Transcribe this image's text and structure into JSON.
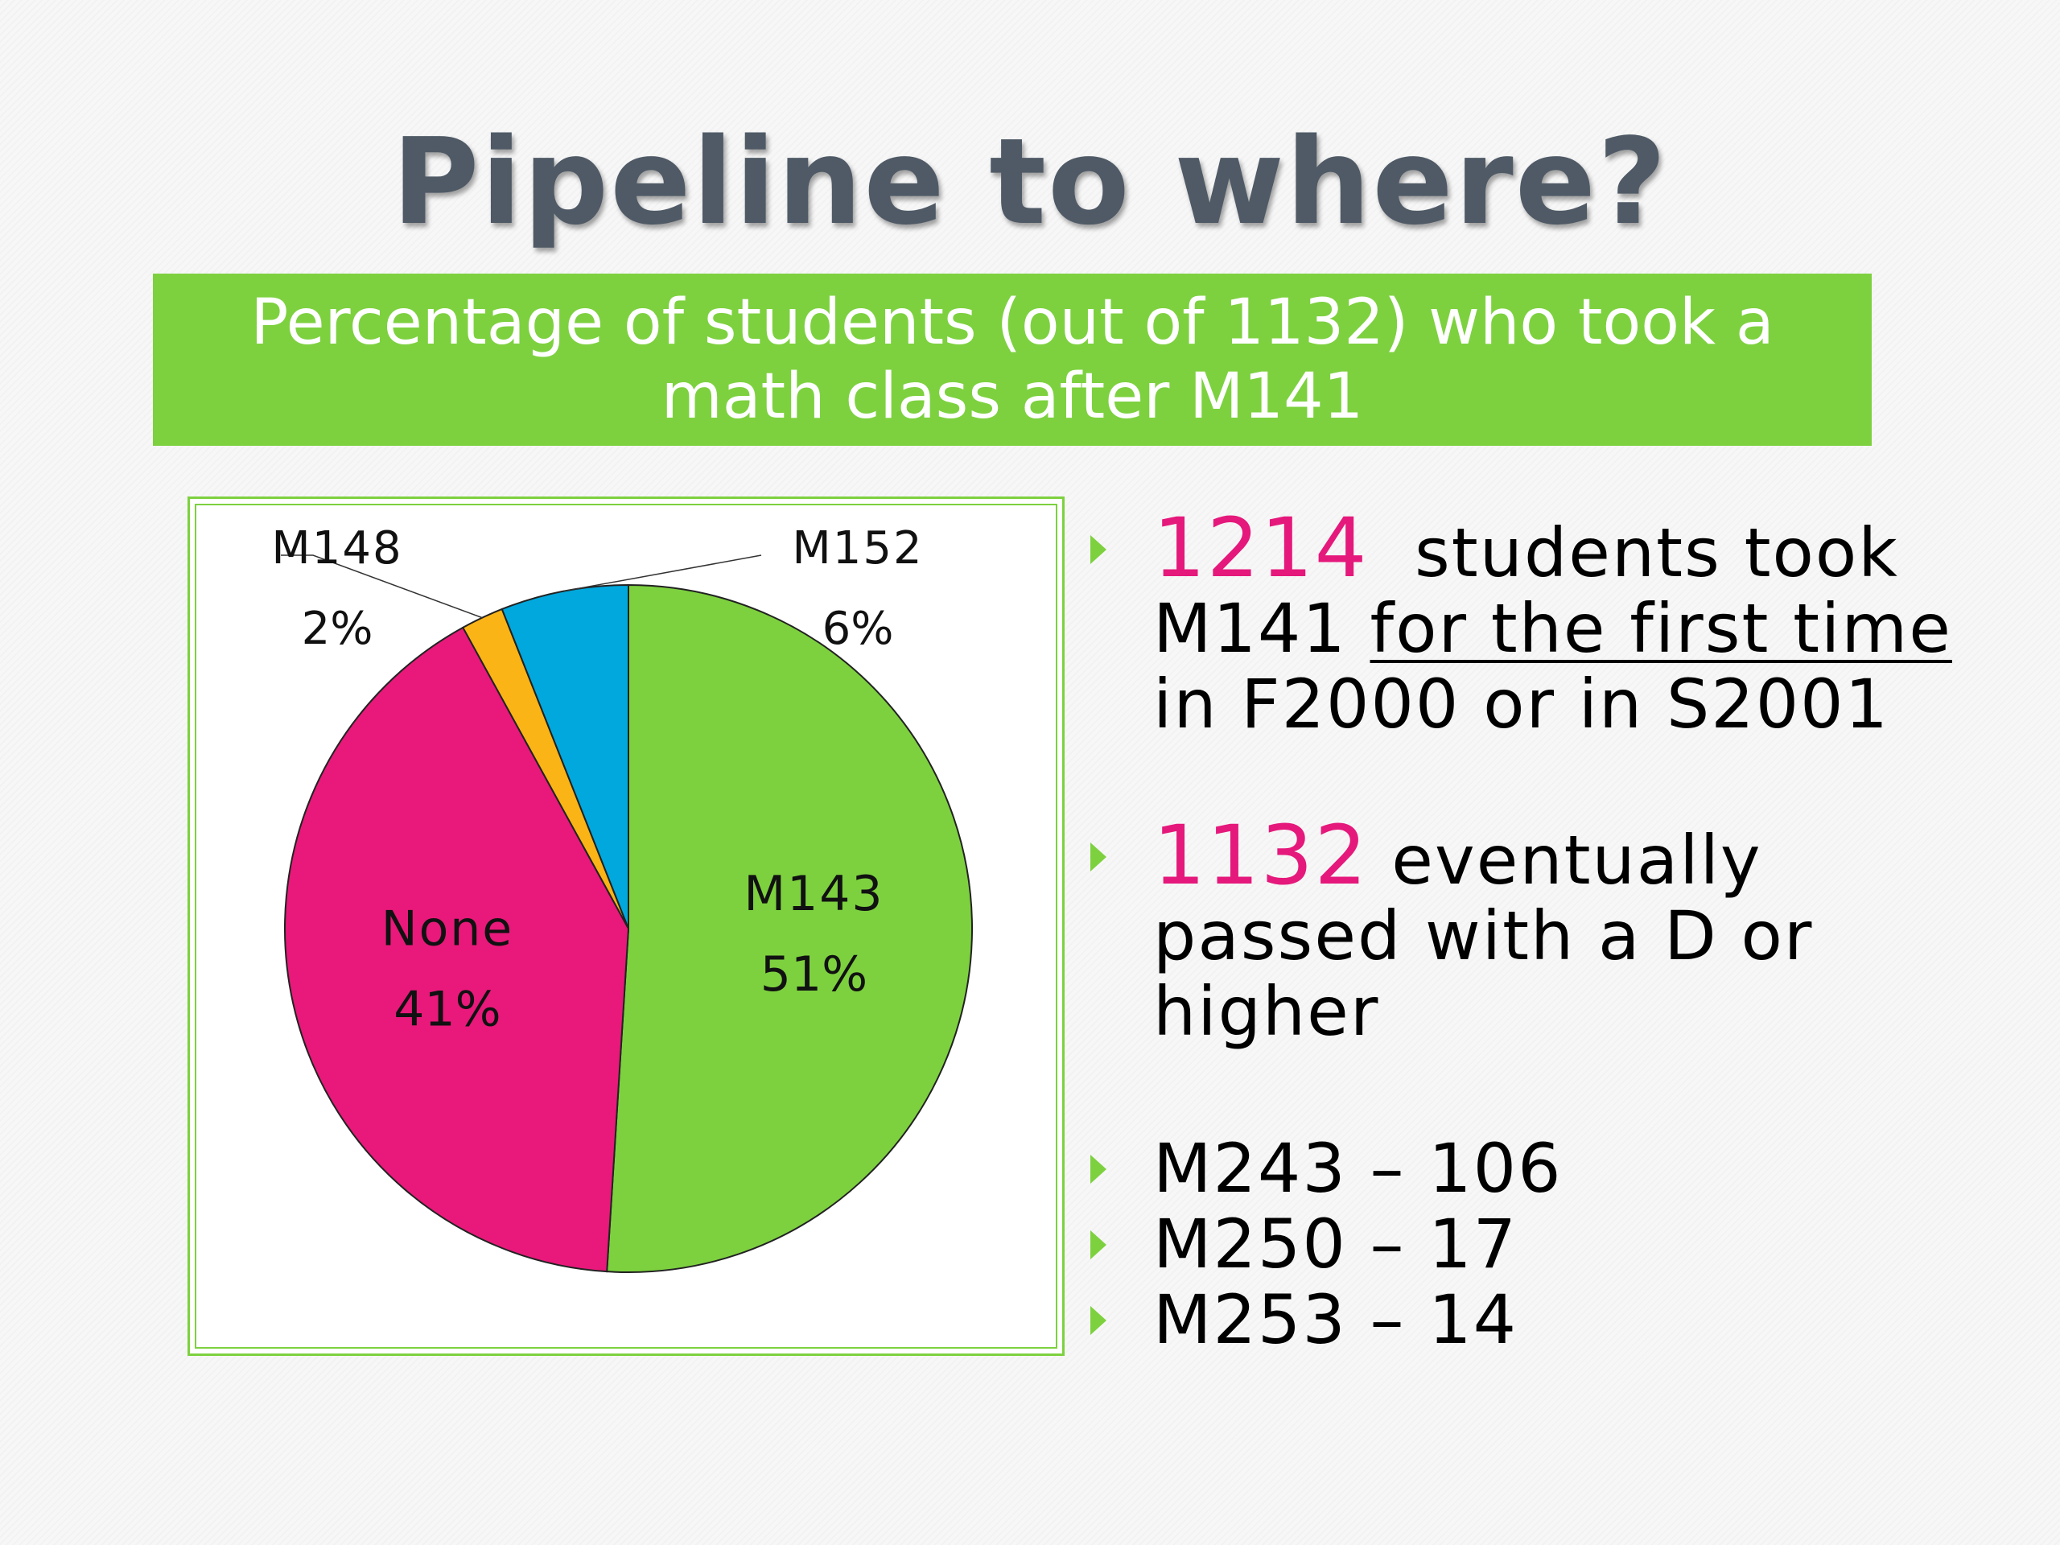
{
  "slide": {
    "title": "Pipeline to where?",
    "banner_line1": "Percentage of students (out of 1132) who took a",
    "banner_line2": "math class after M141"
  },
  "bullets": {
    "b1_num": "1214",
    "b1_text1": "students took",
    "b1_text2": "M141",
    "b1_underlined": "for the first time",
    "b1_text3": "in F2000 or in S2001",
    "b2_num": "1132",
    "b2_text1": "eventually",
    "b2_text2": "passed with a D or",
    "b2_text3": "higher",
    "list": [
      "M243 – 106",
      "M250 – 17",
      "M253 – 14"
    ]
  },
  "colors": {
    "accent": "#7dd13f",
    "highlight": "#e5187b",
    "title": "#4f5a66"
  },
  "chart_data": {
    "type": "pie",
    "title": "",
    "slices": [
      {
        "label": "M143",
        "value": 51,
        "display": "51%",
        "color": "#7dd13f"
      },
      {
        "label": "None",
        "value": 41,
        "display": "41%",
        "color": "#e8197a"
      },
      {
        "label": "M148",
        "value": 2,
        "display": "2%",
        "color": "#fbb416"
      },
      {
        "label": "M152",
        "value": 6,
        "display": "6%",
        "color": "#00a8dd"
      }
    ]
  }
}
